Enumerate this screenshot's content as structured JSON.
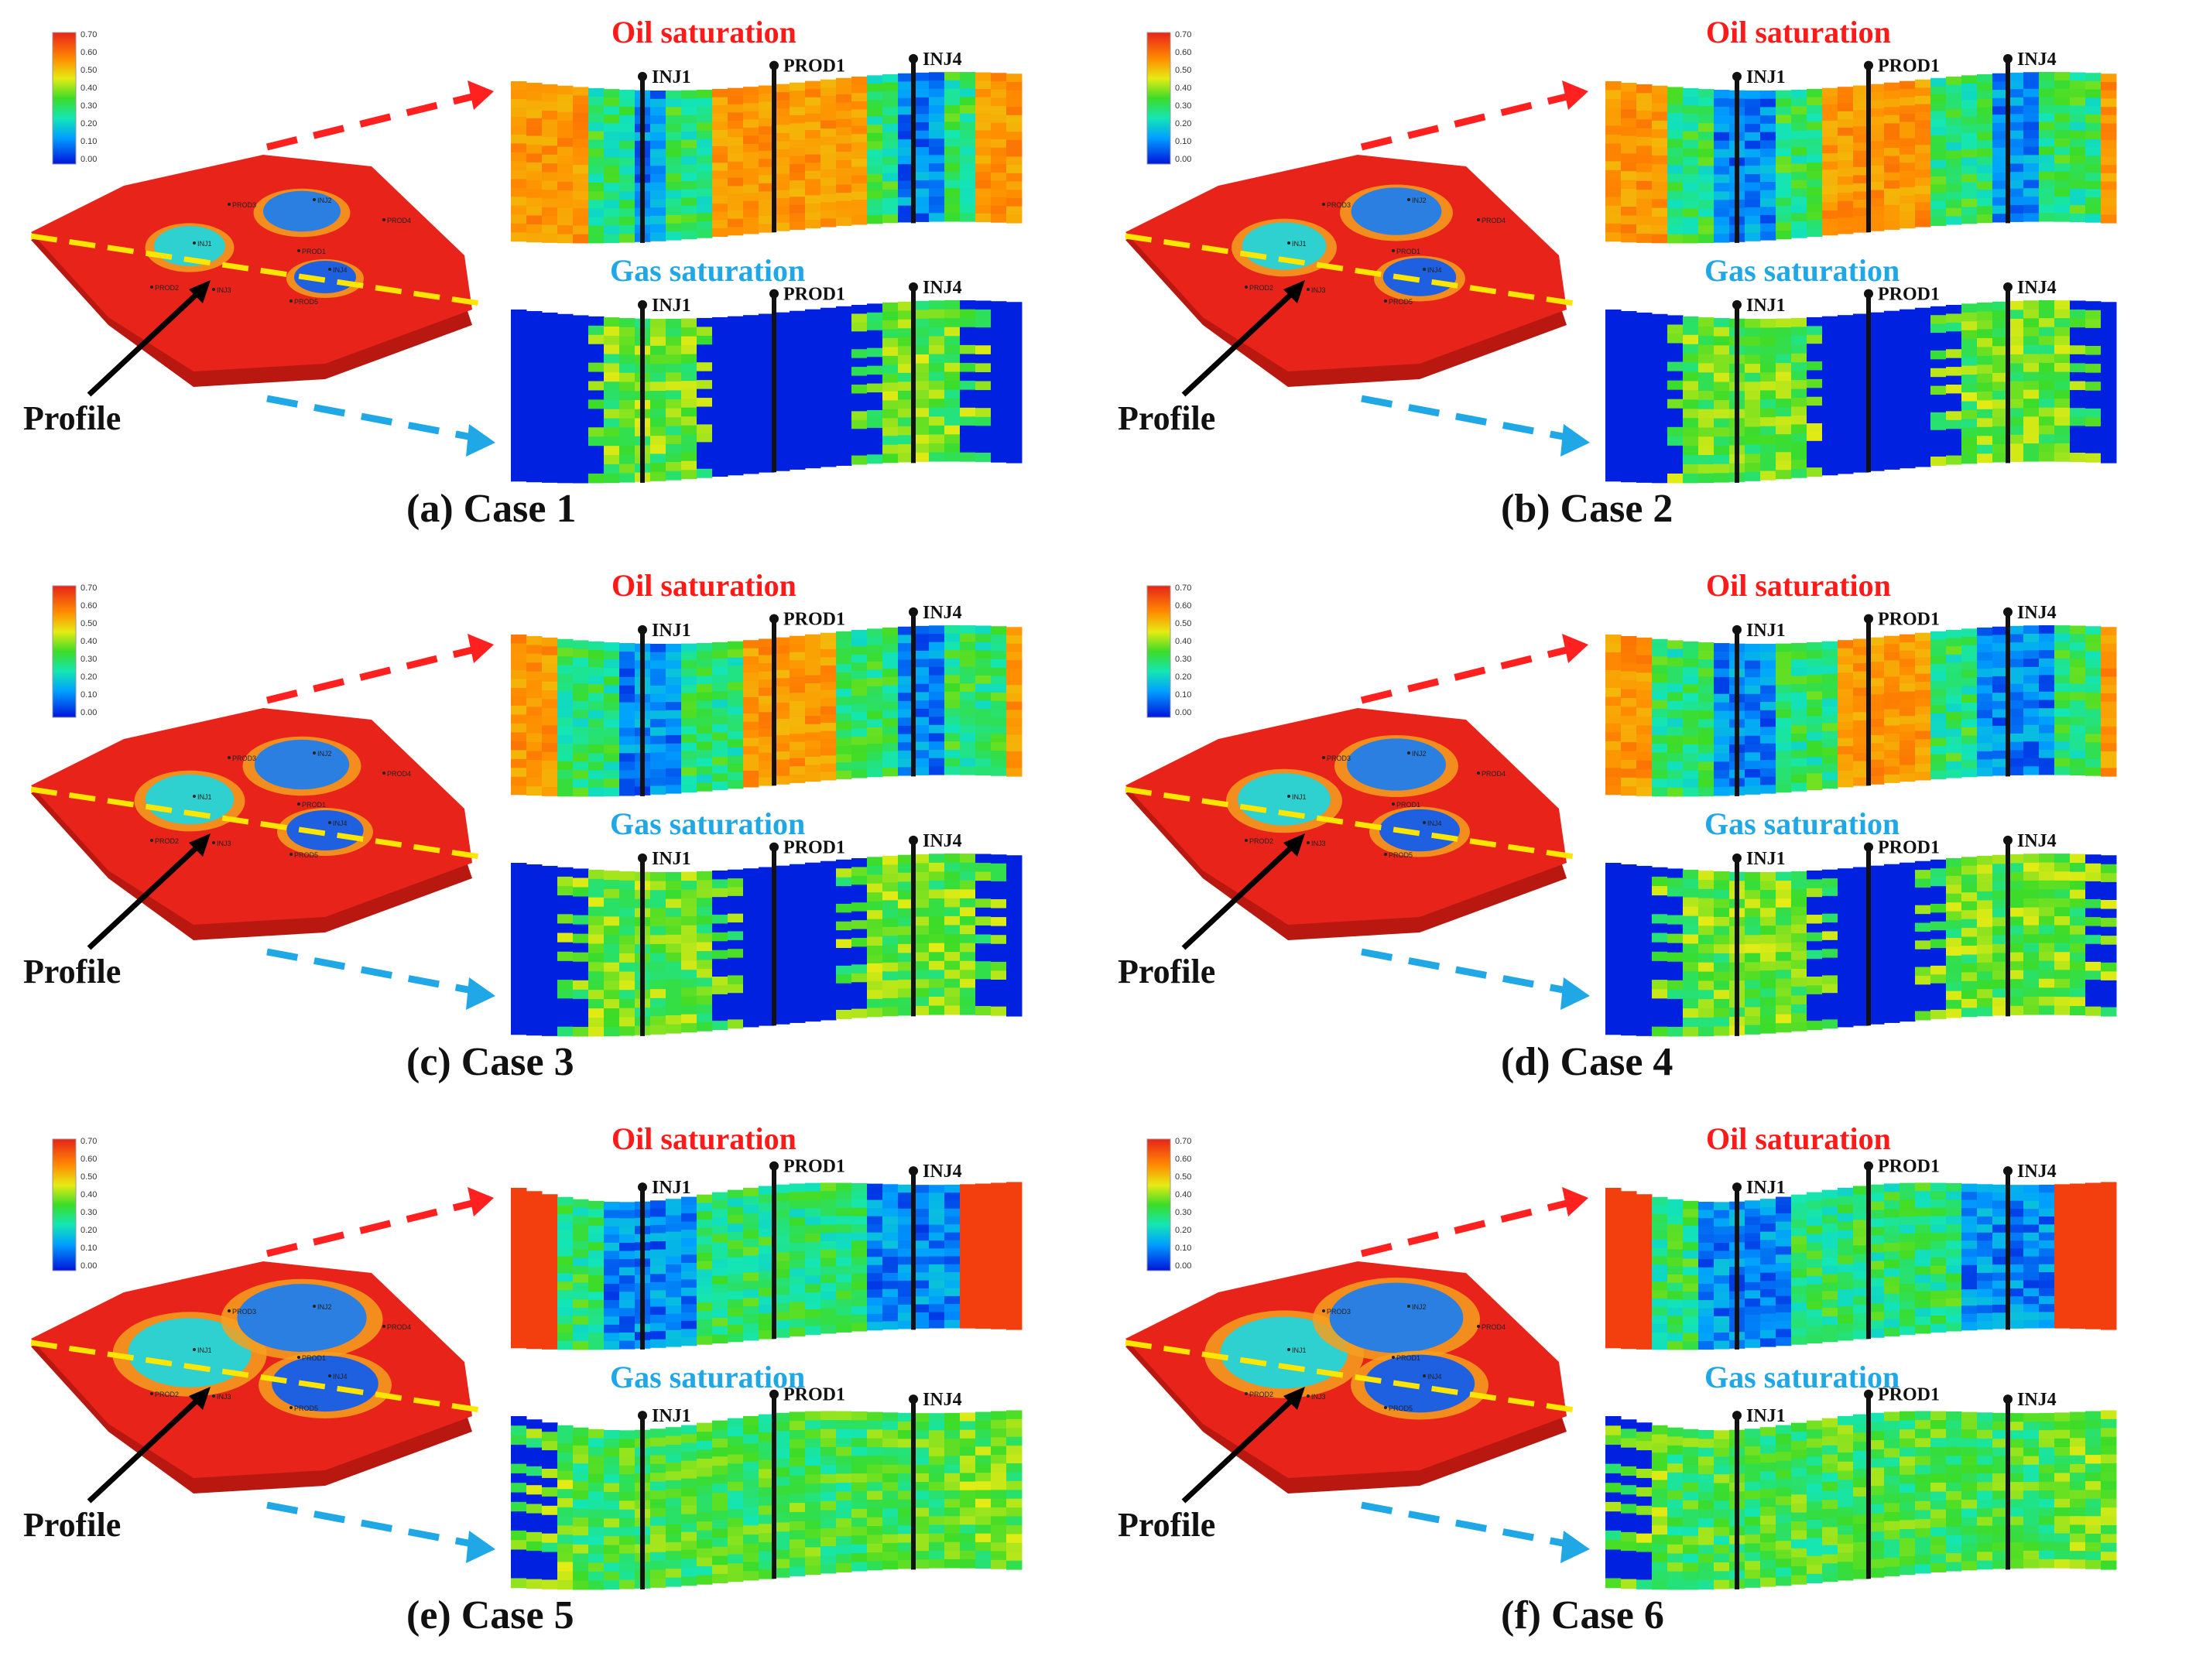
{
  "figure": {
    "colorbar_ticks": [
      "0.70",
      "0.60",
      "0.50",
      "0.40",
      "0.30",
      "0.20",
      "0.10",
      "0.00"
    ],
    "profile_label": "Profile",
    "oil_title": "Oil saturation",
    "gas_title": "Gas saturation",
    "wells": [
      "INJ1",
      "PROD1",
      "INJ4"
    ],
    "map_well_labels": [
      "PROD3",
      "INJ2",
      "PROD4",
      "INJ1",
      "PROD1",
      "INJ4",
      "PROD2",
      "INJ3",
      "PROD5"
    ],
    "colors": {
      "oil_title": "#ff1a1a",
      "gas_title": "#20a8e6",
      "arrow_red": "#ff2020",
      "arrow_blue": "#20a8e6",
      "profile_line": "#ffe600",
      "reservoir": "#e8231a",
      "swept": "#2e6ee6"
    }
  },
  "panels": [
    {
      "caption": "(a) Case 1",
      "swept": 0.25
    },
    {
      "caption": "(b) Case 2",
      "swept": 0.4
    },
    {
      "caption": "(c) Case 3",
      "swept": 0.45
    },
    {
      "caption": "(d) Case 4",
      "swept": 0.5
    },
    {
      "caption": "(e) Case 5",
      "swept": 0.85
    },
    {
      "caption": "(f) Case 6",
      "swept": 0.9
    }
  ]
}
